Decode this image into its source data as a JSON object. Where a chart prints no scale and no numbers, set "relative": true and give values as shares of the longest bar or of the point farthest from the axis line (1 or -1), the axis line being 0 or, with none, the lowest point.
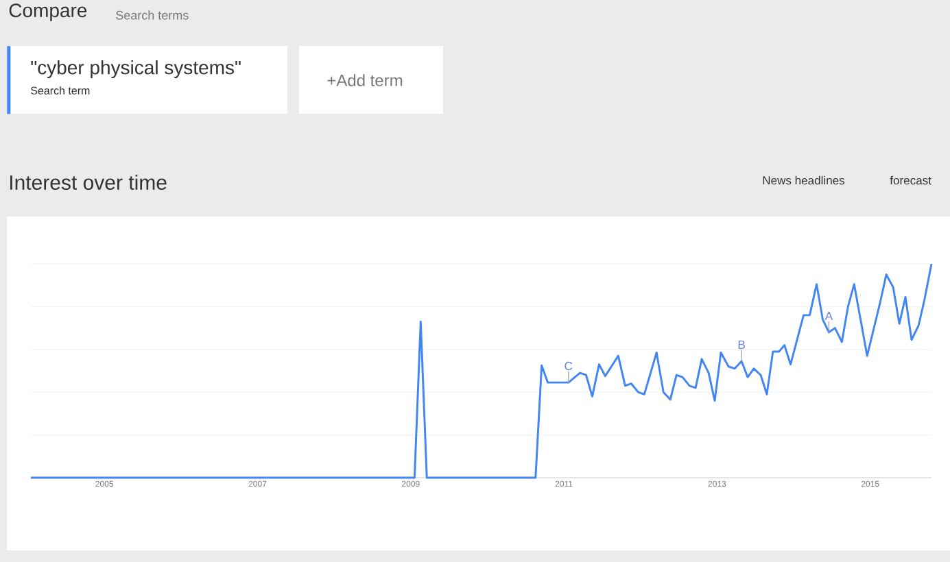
{
  "chart_data": {
    "type": "line",
    "title": "Interest over time",
    "relative": true,
    "annotations": [
      "Compare",
      "Search terms",
      "\"cyber physical systems\"",
      "Search term",
      "+Add term",
      "News headlines",
      "forecast",
      {
        "text": "C",
        "x": 2011.06,
        "y": 0.445
      },
      {
        "text": "B",
        "x": 2013.32,
        "y": 0.545
      },
      {
        "text": "A",
        "x": 2014.46,
        "y": 0.68
      }
    ],
    "xlim": [
      2004.04,
      2015.8
    ],
    "xticks": [
      2005,
      2007,
      2009,
      2011,
      2013,
      2015
    ],
    "grid": "y",
    "marker": "none",
    "line_style": "solid",
    "series": [
      {
        "color": "#4285f4",
        "x": [
          2004.04,
          2009.05,
          2009.13,
          2009.21,
          2010.63,
          2010.71,
          2010.79,
          2011.06,
          2011.21,
          2011.29,
          2011.37,
          2011.46,
          2011.54,
          2011.71,
          2011.8,
          2011.88,
          2011.97,
          2012.05,
          2012.21,
          2012.3,
          2012.39,
          2012.47,
          2012.55,
          2012.64,
          2012.72,
          2012.8,
          2012.89,
          2012.97,
          2013.05,
          2013.15,
          2013.23,
          2013.32,
          2013.4,
          2013.48,
          2013.57,
          2013.65,
          2013.73,
          2013.81,
          2013.88,
          2013.96,
          2014.13,
          2014.21,
          2014.3,
          2014.38,
          2014.46,
          2014.54,
          2014.63,
          2014.71,
          2014.79,
          2014.96,
          2015.13,
          2015.21,
          2015.3,
          2015.38,
          2015.46,
          2015.54,
          2015.63,
          2015.71,
          2015.8
        ],
        "values": [
          0,
          0,
          0.73,
          0,
          0,
          0.525,
          0.445,
          0.445,
          0.49,
          0.48,
          0.38,
          0.53,
          0.475,
          0.57,
          0.43,
          0.44,
          0.4,
          0.39,
          0.585,
          0.4,
          0.365,
          0.48,
          0.47,
          0.43,
          0.42,
          0.555,
          0.49,
          0.36,
          0.585,
          0.52,
          0.51,
          0.545,
          0.47,
          0.51,
          0.48,
          0.39,
          0.59,
          0.59,
          0.62,
          0.53,
          0.76,
          0.76,
          0.905,
          0.74,
          0.68,
          0.7,
          0.635,
          0.8,
          0.905,
          0.57,
          0.82,
          0.95,
          0.89,
          0.72,
          0.845,
          0.645,
          0.71,
          0.835,
          1.0
        ]
      }
    ]
  }
}
